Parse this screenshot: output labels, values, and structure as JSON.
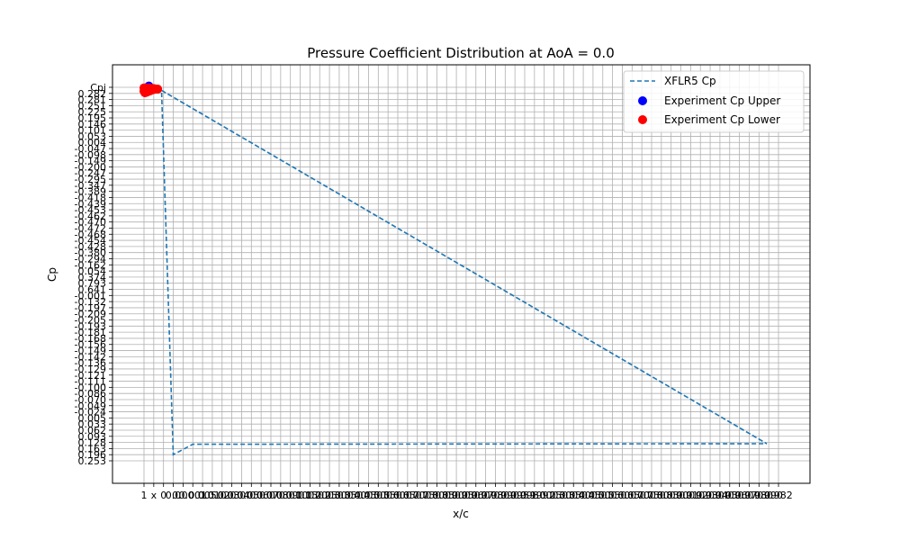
{
  "chart_data": {
    "type": "line",
    "title": "Pressure Coefficient Distribution at AoA = 0.0",
    "xlabel": "x/c",
    "ylabel": "Cp",
    "grid": true,
    "legend_position": "top-right",
    "x_categories": [
      "1",
      "x",
      "0",
      "0.0",
      "0.00",
      "0.001",
      "0.005",
      "0.010",
      "0.020",
      "0.030",
      "0.040",
      "0.050",
      "0.060",
      "0.070",
      "0.080",
      "0.090",
      "0.100",
      "0.150",
      "0.200",
      "0.250",
      "0.300",
      "0.350",
      "0.400",
      "0.450",
      "0.500",
      "0.550",
      "0.600",
      "0.650",
      "0.700",
      "0.750",
      "0.800",
      "0.850",
      "0.900",
      "0.950",
      "0.960",
      "0.970",
      "0.980",
      "0.990",
      "0.995",
      "0.998",
      "0.999",
      "1.000",
      "0.250",
      "0.300",
      "0.350",
      "0.400",
      "0.450",
      "0.500",
      "0.550",
      "0.600",
      "0.650",
      "0.700",
      "0.750",
      "0.800",
      "0.850",
      "0.900",
      "0.910",
      "0.920",
      "0.930",
      "0.940",
      "0.950",
      "0.960",
      "0.970",
      "0.980",
      "0.990",
      "0.982"
    ],
    "y_categories": [
      "Cpj",
      "0.282",
      "0.281",
      "0.251",
      "0.225",
      "0.195",
      "0.146",
      "0.101",
      "0.053",
      "0.004",
      "-0.047",
      "-0.098",
      "-0.149",
      "-0.200",
      "-0.247",
      "-0.295",
      "-0.347",
      "-0.389",
      "-0.418",
      "-0.439",
      "-0.453",
      "-0.462",
      "-0.470",
      "-0.472",
      "-0.468",
      "-0.454",
      "-0.428",
      "-0.380",
      "-0.294",
      "-0.162",
      "0.054",
      "0.374",
      "0.793",
      "0.641",
      "-0.001",
      "-0.132",
      "-0.197",
      "-0.209",
      "-0.205",
      "-0.193",
      "-0.181",
      "-0.168",
      "-0.156",
      "-0.149",
      "-0.142",
      "-0.136",
      "-0.129",
      "-0.121",
      "-0.111",
      "-0.100",
      "-0.086",
      "-0.070",
      "-0.049",
      "-0.024",
      "0.005",
      "0.033",
      "0.062",
      "0.093",
      "0.128",
      "0.163",
      "0.196",
      "0.253"
    ],
    "series": [
      {
        "name": "XFLR5 Cp",
        "style": "dashed",
        "color": "#1f77b4",
        "points": [
          [
            1.8,
            0.5
          ],
          [
            63.8,
            58.2
          ],
          [
            1.8,
            0.5
          ],
          [
            3.0,
            60.0
          ],
          [
            5.0,
            58.3
          ],
          [
            63.8,
            58.2
          ]
        ]
      },
      {
        "name": "Experiment Cp Upper",
        "style": "scatter",
        "color": "#0000ff",
        "points": [
          [
            0.3,
            0.2
          ],
          [
            0.5,
            -0.2
          ],
          [
            0.6,
            0.1
          ],
          [
            0.4,
            0.5
          ],
          [
            0.2,
            0.3
          ]
        ]
      },
      {
        "name": "Experiment Cp Lower",
        "style": "scatter",
        "color": "#ff0000",
        "points": [
          [
            0.0,
            0.1
          ],
          [
            0.0,
            0.6
          ],
          [
            0.2,
            0.1
          ],
          [
            0.5,
            0.1
          ],
          [
            0.8,
            0.2
          ],
          [
            1.0,
            0.2
          ],
          [
            1.2,
            0.3
          ],
          [
            1.4,
            0.3
          ],
          [
            0.3,
            0.5
          ],
          [
            0.6,
            0.6
          ],
          [
            0.9,
            0.4
          ],
          [
            0.1,
            0.9
          ],
          [
            0.3,
            0.8
          ],
          [
            0.5,
            0.3
          ],
          [
            0.7,
            0.2
          ]
        ]
      }
    ]
  }
}
